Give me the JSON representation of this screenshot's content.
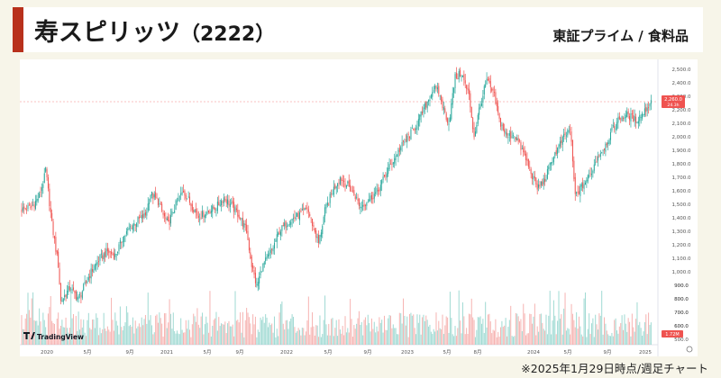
{
  "header": {
    "title": "寿スピリッツ",
    "code": "（2222）",
    "market": "東証プライム / 食料品"
  },
  "footer": {
    "note": "※2025年1月29日時点/週足チャート"
  },
  "colors": {
    "accent": "#b8311c",
    "up": "#26a69a",
    "down": "#ef5350",
    "up_volume": "#8fd3cb",
    "down_volume": "#f5a7a5"
  },
  "chart": {
    "logo": "TradingView",
    "price_badge": "2,260.0",
    "price_badge_sub": "24.3h",
    "volume_badge": "1.72M"
  },
  "chart_data": {
    "type": "candlestick",
    "interval": "weekly",
    "y_axis_ticks": [
      "2,500.0",
      "2,400.0",
      "2,300.0",
      "2,200.0",
      "2,100.0",
      "2,000.0",
      "1,900.0",
      "1,800.0",
      "1,700.0",
      "1,600.0",
      "1,500.0",
      "1,400.0",
      "1,300.0",
      "1,200.0",
      "1,100.0",
      "1,000.0",
      "900.0",
      "800.0",
      "700.0",
      "600.0",
      "500.0"
    ],
    "x_axis_ticks": [
      "2020",
      "5月",
      "9月",
      "2021",
      "5月",
      "9月",
      "2022",
      "5月",
      "9月",
      "2023",
      "5月",
      "8月",
      "2024",
      "5月",
      "9月",
      "2025"
    ],
    "ylim": [
      440,
      2560
    ],
    "last_price": 2260,
    "path": [
      [
        0,
        1460
      ],
      [
        8,
        1480
      ],
      [
        14,
        1560
      ],
      [
        18,
        1700
      ],
      [
        19,
        1760
      ],
      [
        24,
        1350
      ],
      [
        29,
        1050
      ],
      [
        31,
        780
      ],
      [
        38,
        880
      ],
      [
        45,
        800
      ],
      [
        55,
        1000
      ],
      [
        62,
        1100
      ],
      [
        68,
        1150
      ],
      [
        74,
        1120
      ],
      [
        80,
        1250
      ],
      [
        86,
        1330
      ],
      [
        92,
        1380
      ],
      [
        98,
        1420
      ],
      [
        102,
        1580
      ],
      [
        108,
        1520
      ],
      [
        112,
        1420
      ],
      [
        116,
        1350
      ],
      [
        122,
        1500
      ],
      [
        128,
        1600
      ],
      [
        134,
        1500
      ],
      [
        140,
        1410
      ],
      [
        146,
        1440
      ],
      [
        154,
        1480
      ],
      [
        160,
        1550
      ],
      [
        166,
        1490
      ],
      [
        172,
        1420
      ],
      [
        178,
        1300
      ],
      [
        182,
        1050
      ],
      [
        186,
        890
      ],
      [
        190,
        1030
      ],
      [
        198,
        1160
      ],
      [
        204,
        1300
      ],
      [
        212,
        1380
      ],
      [
        220,
        1420
      ],
      [
        226,
        1470
      ],
      [
        232,
        1300
      ],
      [
        235,
        1210
      ],
      [
        240,
        1450
      ],
      [
        246,
        1600
      ],
      [
        252,
        1700
      ],
      [
        258,
        1640
      ],
      [
        264,
        1560
      ],
      [
        268,
        1480
      ],
      [
        274,
        1530
      ],
      [
        282,
        1600
      ],
      [
        290,
        1760
      ],
      [
        296,
        1860
      ],
      [
        302,
        1950
      ],
      [
        312,
        2080
      ],
      [
        320,
        2240
      ],
      [
        326,
        2360
      ],
      [
        330,
        2330
      ],
      [
        334,
        2200
      ],
      [
        338,
        2100
      ],
      [
        343,
        2440
      ],
      [
        348,
        2470
      ],
      [
        354,
        2300
      ],
      [
        358,
        2000
      ],
      [
        362,
        2200
      ],
      [
        368,
        2420
      ],
      [
        374,
        2300
      ],
      [
        378,
        2120
      ],
      [
        384,
        2000
      ],
      [
        390,
        2020
      ],
      [
        396,
        1900
      ],
      [
        402,
        1760
      ],
      [
        408,
        1620
      ],
      [
        414,
        1680
      ],
      [
        420,
        1840
      ],
      [
        428,
        1980
      ],
      [
        434,
        2060
      ],
      [
        438,
        1560
      ],
      [
        444,
        1640
      ],
      [
        450,
        1720
      ],
      [
        456,
        1860
      ],
      [
        462,
        1940
      ],
      [
        468,
        2060
      ],
      [
        474,
        2150
      ],
      [
        480,
        2160
      ],
      [
        486,
        2120
      ],
      [
        492,
        2180
      ],
      [
        498,
        2260
      ]
    ]
  }
}
